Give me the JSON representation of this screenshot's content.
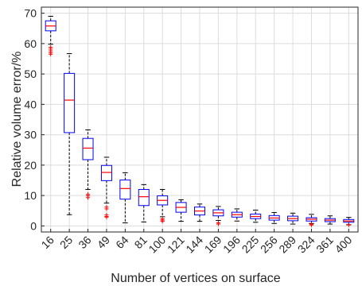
{
  "chart_data": {
    "type": "boxplot",
    "xlabel": "Number of vertices on surface",
    "ylabel": "Relative volume error/%",
    "ylim": [
      -2,
      72
    ],
    "yticks": [
      0,
      10,
      20,
      30,
      40,
      50,
      60,
      70
    ],
    "grid": true,
    "colors": {
      "box": "#0000ff",
      "median": "#ff0000",
      "outlier": "#ff0000",
      "whisker": "#000000",
      "grid": "#dcdcdc"
    },
    "categories": [
      "16",
      "25",
      "36",
      "49",
      "64",
      "81",
      "100",
      "121",
      "144",
      "169",
      "196",
      "225",
      "256",
      "289",
      "324",
      "361",
      "400"
    ],
    "boxes": [
      {
        "q1": 64.2,
        "median": 65.8,
        "q3": 67.5,
        "whisker_low": 59.8,
        "whisker_high": 69.0,
        "outliers": [
          58.8,
          58.2,
          57.6,
          57.0,
          56.5
        ]
      },
      {
        "q1": 30.7,
        "median": 41.4,
        "q3": 50.2,
        "whisker_low": 3.7,
        "whisker_high": 56.7,
        "outliers": []
      },
      {
        "q1": 21.8,
        "median": 25.6,
        "q3": 28.8,
        "whisker_low": 12.0,
        "whisker_high": 31.6,
        "outliers": [
          10.4,
          9.9,
          9.3
        ]
      },
      {
        "q1": 14.9,
        "median": 17.6,
        "q3": 19.9,
        "whisker_low": 7.5,
        "whisker_high": 22.6,
        "outliers": [
          6.2,
          5.6,
          3.6,
          3.1,
          2.9
        ]
      },
      {
        "q1": 8.8,
        "median": 12.3,
        "q3": 15.1,
        "whisker_low": 1.0,
        "whisker_high": 17.5,
        "outliers": []
      },
      {
        "q1": 6.7,
        "median": 9.6,
        "q3": 12.0,
        "whisker_low": 1.3,
        "whisker_high": 13.6,
        "outliers": []
      },
      {
        "q1": 6.9,
        "median": 8.4,
        "q3": 9.9,
        "whisker_low": 3.0,
        "whisker_high": 12.0,
        "outliers": [
          2.3,
          1.9,
          1.5
        ]
      },
      {
        "q1": 4.5,
        "median": 6.1,
        "q3": 7.7,
        "whisker_low": 1.5,
        "whisker_high": 8.6,
        "outliers": []
      },
      {
        "q1": 3.6,
        "median": 4.9,
        "q3": 6.2,
        "whisker_low": 1.5,
        "whisker_high": 7.2,
        "outliers": []
      },
      {
        "q1": 3.3,
        "median": 4.3,
        "q3": 5.3,
        "whisker_low": 1.8,
        "whisker_high": 6.4,
        "outliers": [
          1.0,
          0.6
        ]
      },
      {
        "q1": 2.9,
        "median": 3.7,
        "q3": 4.5,
        "whisker_low": 1.6,
        "whisker_high": 5.6,
        "outliers": []
      },
      {
        "q1": 2.4,
        "median": 3.1,
        "q3": 3.9,
        "whisker_low": 1.2,
        "whisker_high": 5.2,
        "outliers": []
      },
      {
        "q1": 1.9,
        "median": 2.6,
        "q3": 3.4,
        "whisker_low": 0.8,
        "whisker_high": 4.4,
        "outliers": []
      },
      {
        "q1": 1.7,
        "median": 2.4,
        "q3": 3.2,
        "whisker_low": 0.6,
        "whisker_high": 4.2,
        "outliers": []
      },
      {
        "q1": 1.6,
        "median": 2.2,
        "q3": 2.7,
        "whisker_low": 0.8,
        "whisker_high": 3.8,
        "outliers": [
          0.6,
          0.3
        ]
      },
      {
        "q1": 1.4,
        "median": 1.9,
        "q3": 2.4,
        "whisker_low": 0.6,
        "whisker_high": 3.3,
        "outliers": []
      },
      {
        "q1": 1.2,
        "median": 1.6,
        "q3": 2.1,
        "whisker_low": 0.4,
        "whisker_high": 2.8,
        "outliers": [
          0.3
        ]
      }
    ]
  }
}
